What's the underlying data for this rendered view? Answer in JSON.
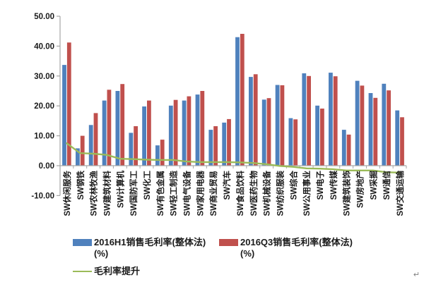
{
  "chart_data": {
    "type": "bar",
    "title": "",
    "categories": [
      "SW休闲服务",
      "SW钢铁",
      "SW农林牧渔",
      "SW建筑材料",
      "SW计算机",
      "SW国防军工",
      "SW化工",
      "SW有色金属",
      "SW轻工制造",
      "SW电气设备",
      "SW家用电器",
      "SW商业贸易",
      "SW汽车",
      "SW食品饮料",
      "SW医药生物",
      "SW机械设备",
      "SW纺织服装",
      "SW综合",
      "SW公用事业",
      "SW电子",
      "SW传媒",
      "SW建筑装饰",
      "SW房地产",
      "SW采掘",
      "SW通信",
      "SW交通运输"
    ],
    "series": [
      {
        "name": "2016H1销售毛利率(整体法)(%)",
        "type": "bar",
        "color": "#4F81BD",
        "values": [
          33.7,
          5.8,
          13.6,
          21.8,
          25.0,
          11.0,
          19.8,
          6.8,
          20.1,
          21.8,
          23.8,
          12.0,
          14.4,
          43.0,
          29.7,
          22.1,
          27.0,
          15.9,
          30.9,
          20.1,
          31.1,
          12.0,
          28.4,
          24.3,
          27.4,
          18.5
        ]
      },
      {
        "name": "2016Q3销售毛利率(整体法)(%)",
        "type": "bar",
        "color": "#C0504D",
        "values": [
          41.2,
          10.0,
          17.6,
          25.4,
          27.3,
          13.2,
          21.8,
          8.7,
          22.0,
          23.2,
          25.0,
          13.2,
          15.6,
          44.1,
          30.6,
          22.6,
          26.9,
          15.5,
          30.0,
          19.1,
          29.9,
          10.4,
          26.8,
          22.7,
          25.2,
          16.2
        ]
      },
      {
        "name": "毛利率提升",
        "type": "line",
        "color": "#9BBB59",
        "values": [
          7.5,
          4.2,
          4.0,
          3.6,
          2.3,
          2.2,
          2.0,
          1.9,
          1.9,
          1.4,
          1.2,
          1.2,
          1.2,
          1.1,
          0.9,
          0.5,
          -0.1,
          -0.4,
          -0.9,
          -1.0,
          -1.2,
          -1.6,
          -1.6,
          -1.6,
          -2.2,
          -2.3
        ]
      }
    ],
    "xlabel": "",
    "ylabel": "",
    "ylim": [
      -10,
      50
    ],
    "y_tick_labels": [
      "50.00",
      "40.00",
      "30.00",
      "20.00",
      "10.00",
      "0.00",
      "-10.00"
    ],
    "y_tick_values": [
      50,
      40,
      30,
      20,
      10,
      0,
      -10
    ],
    "grid": false,
    "legend_position": "bottom"
  },
  "legend": {
    "h1_label": "2016H1销售毛利率(整体法)",
    "h1_unit": "(%)",
    "q3_label": "2016Q3销售毛利率(整体法)",
    "q3_unit": "(%)",
    "line_label": "毛利率提升"
  },
  "colors": {
    "bar_h1": "#4F81BD",
    "bar_q3": "#C0504D",
    "line_diff": "#9BBB59",
    "axis": "#A6A6A6",
    "text": "#1a1a1a"
  },
  "misc": {
    "paragraph_mark": "↵"
  }
}
